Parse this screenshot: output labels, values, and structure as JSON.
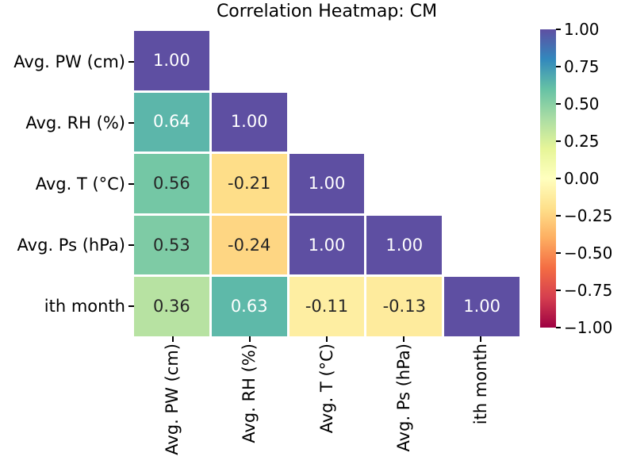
{
  "chart_data": {
    "type": "heatmap",
    "title": "Correlation Heatmap: CM",
    "labels": [
      "Avg. PW (cm)",
      "Avg. RH (%)",
      "Avg. T (°C)",
      "Avg. Ps (hPa)",
      "ith month"
    ],
    "matrix": [
      [
        1.0,
        null,
        null,
        null,
        null
      ],
      [
        0.64,
        1.0,
        null,
        null,
        null
      ],
      [
        0.56,
        -0.21,
        1.0,
        null,
        null
      ],
      [
        0.53,
        -0.24,
        1.0,
        1.0,
        null
      ],
      [
        0.36,
        0.63,
        -0.11,
        -0.13,
        1.0
      ]
    ],
    "vmin": -1.0,
    "vmax": 1.0,
    "value_format": "0.00",
    "shape": "lower-triangle",
    "gridline_color": "#ffffff",
    "colorbar": {
      "position": "right",
      "tick_labels": [
        "1.00",
        "0.75",
        "0.50",
        "0.25",
        "0.00",
        "−0.25",
        "−0.50",
        "−0.75",
        "−1.00"
      ],
      "tick_values": [
        1.0,
        0.75,
        0.5,
        0.25,
        0.0,
        -0.25,
        -0.5,
        -0.75,
        -1.0
      ]
    },
    "colormap": {
      "name": "Spectral",
      "anchors": [
        "#9e0142",
        "#d53e4f",
        "#f46d43",
        "#fdae61",
        "#fee08b",
        "#ffffbf",
        "#e6f598",
        "#abdda4",
        "#66c2a5",
        "#3288bd",
        "#5e4fa2"
      ]
    },
    "annotation_colors": {
      "light": "#ffffff",
      "dark": "#262626"
    }
  }
}
